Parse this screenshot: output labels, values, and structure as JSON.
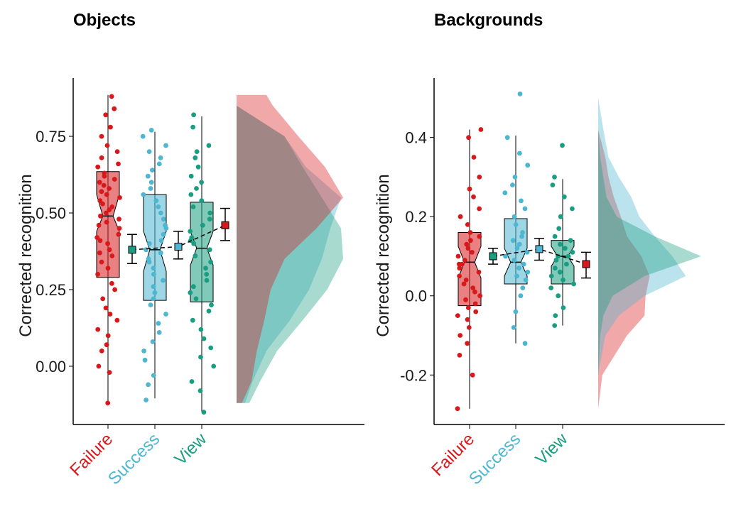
{
  "colors": {
    "Failure": "#d7191c",
    "Success": "#4db6d0",
    "View": "#1a9e82"
  },
  "chart_data": [
    {
      "type": "raincloud",
      "title": "Objects",
      "ylabel": "Corrected recognition",
      "ylim": [
        -0.19,
        0.94
      ],
      "yticks": [
        0.0,
        0.25,
        0.5,
        0.75
      ],
      "ytick_labels": [
        "0.00",
        "0.25",
        "0.50",
        "0.75"
      ],
      "categories": [
        "Failure",
        "Success",
        "View"
      ],
      "boxes": [
        {
          "name": "Failure",
          "whisker_low": -0.12,
          "q1": 0.29,
          "median": 0.49,
          "q3": 0.635,
          "whisker_high": 0.885,
          "notch_low": 0.44,
          "notch_high": 0.56
        },
        {
          "name": "Success",
          "whisker_low": -0.105,
          "q1": 0.215,
          "median": 0.38,
          "q3": 0.56,
          "whisker_high": 0.765,
          "notch_low": 0.31,
          "notch_high": 0.44
        },
        {
          "name": "View",
          "whisker_low": -0.15,
          "q1": 0.21,
          "median": 0.385,
          "q3": 0.535,
          "whisker_high": 0.815,
          "notch_low": 0.33,
          "notch_high": 0.44
        }
      ],
      "means": [
        {
          "name": "Success",
          "mean": 0.38,
          "ci": [
            0.335,
            0.43
          ],
          "color_key": "View"
        },
        {
          "name": "View",
          "mean": 0.39,
          "ci": [
            0.35,
            0.44
          ],
          "color_key": "Success"
        },
        {
          "name": "Failure",
          "mean": 0.46,
          "ci": [
            0.41,
            0.515
          ],
          "color_key": "Failure"
        }
      ],
      "density_y": [
        -0.12,
        -0.05,
        0.05,
        0.15,
        0.25,
        0.35,
        0.45,
        0.55,
        0.65,
        0.75,
        0.85,
        0.885
      ],
      "densities": [
        {
          "name": "Failure",
          "values": [
            0.05,
            0.14,
            0.19,
            0.26,
            0.32,
            0.45,
            0.75,
            1.0,
            0.83,
            0.58,
            0.34,
            0.28
          ]
        },
        {
          "name": "Success",
          "values": [
            0.08,
            0.15,
            0.28,
            0.5,
            0.68,
            0.8,
            0.88,
            0.98,
            0.65,
            0.45,
            0.0,
            0.0
          ]
        },
        {
          "name": "View",
          "values": [
            0.12,
            0.22,
            0.38,
            0.62,
            0.85,
            1.0,
            0.98,
            0.8,
            0.62,
            0.45,
            0.0,
            0.0
          ]
        }
      ],
      "points": {
        "Failure": [
          -0.12,
          -0.02,
          0.0,
          0.05,
          0.07,
          0.1,
          0.12,
          0.15,
          0.17,
          0.19,
          0.22,
          0.25,
          0.27,
          0.3,
          0.32,
          0.34,
          0.36,
          0.37,
          0.38,
          0.4,
          0.41,
          0.42,
          0.43,
          0.45,
          0.46,
          0.47,
          0.48,
          0.49,
          0.5,
          0.51,
          0.52,
          0.53,
          0.54,
          0.55,
          0.56,
          0.57,
          0.58,
          0.59,
          0.6,
          0.61,
          0.62,
          0.63,
          0.65,
          0.66,
          0.68,
          0.7,
          0.72,
          0.75,
          0.78,
          0.82,
          0.84,
          0.88
        ],
        "Success": [
          -0.11,
          -0.06,
          -0.03,
          0.02,
          0.05,
          0.08,
          0.11,
          0.14,
          0.17,
          0.2,
          0.22,
          0.24,
          0.26,
          0.28,
          0.3,
          0.32,
          0.34,
          0.35,
          0.37,
          0.38,
          0.4,
          0.41,
          0.43,
          0.45,
          0.46,
          0.48,
          0.5,
          0.52,
          0.54,
          0.56,
          0.58,
          0.6,
          0.62,
          0.64,
          0.66,
          0.68,
          0.7,
          0.72,
          0.75,
          0.77
        ],
        "View": [
          -0.15,
          -0.08,
          -0.05,
          0.0,
          0.03,
          0.06,
          0.09,
          0.12,
          0.15,
          0.18,
          0.2,
          0.22,
          0.24,
          0.26,
          0.28,
          0.3,
          0.32,
          0.34,
          0.36,
          0.38,
          0.4,
          0.41,
          0.42,
          0.44,
          0.46,
          0.48,
          0.5,
          0.52,
          0.54,
          0.56,
          0.58,
          0.6,
          0.62,
          0.65,
          0.68,
          0.7,
          0.72,
          0.78,
          0.82
        ]
      }
    },
    {
      "type": "raincloud",
      "title": "Backgrounds",
      "ylabel": "Corrected recognition",
      "ylim": [
        -0.325,
        0.55
      ],
      "yticks": [
        -0.2,
        0.0,
        0.2,
        0.4
      ],
      "ytick_labels": [
        "-0.2",
        "0.0",
        "0.2",
        "0.4"
      ],
      "categories": [
        "Failure",
        "Success",
        "View"
      ],
      "boxes": [
        {
          "name": "Failure",
          "whisker_low": -0.285,
          "q1": -0.025,
          "median": 0.085,
          "q3": 0.16,
          "whisker_high": 0.42,
          "notch_low": 0.045,
          "notch_high": 0.125
        },
        {
          "name": "Success",
          "whisker_low": -0.12,
          "q1": 0.03,
          "median": 0.085,
          "q3": 0.195,
          "whisker_high": 0.405,
          "notch_low": 0.05,
          "notch_high": 0.12
        },
        {
          "name": "View",
          "whisker_low": -0.075,
          "q1": 0.03,
          "median": 0.1,
          "q3": 0.14,
          "whisker_high": 0.295,
          "notch_low": 0.075,
          "notch_high": 0.125
        }
      ],
      "means": [
        {
          "name": "Success",
          "mean": 0.1,
          "ci": [
            0.08,
            0.12
          ],
          "color_key": "View"
        },
        {
          "name": "View",
          "mean": 0.118,
          "ci": [
            0.09,
            0.145
          ],
          "color_key": "Success"
        },
        {
          "name": "Failure",
          "mean": 0.08,
          "ci": [
            0.045,
            0.11
          ],
          "color_key": "Failure"
        }
      ],
      "density_y": [
        -0.285,
        -0.2,
        -0.1,
        -0.05,
        0.0,
        0.05,
        0.1,
        0.15,
        0.2,
        0.25,
        0.3,
        0.35,
        0.42,
        0.5
      ],
      "densities": [
        {
          "name": "Failure",
          "values": [
            0.0,
            0.04,
            0.28,
            0.45,
            0.46,
            0.5,
            0.42,
            0.28,
            0.22,
            0.15,
            0.1,
            0.07,
            0.0,
            0.0
          ]
        },
        {
          "name": "Success",
          "values": [
            0.0,
            0.0,
            0.07,
            0.2,
            0.45,
            0.85,
            0.72,
            0.55,
            0.4,
            0.32,
            0.2,
            0.1,
            0.05,
            0.0
          ]
        },
        {
          "name": "View",
          "values": [
            0.0,
            0.0,
            0.02,
            0.05,
            0.14,
            0.45,
            1.0,
            0.55,
            0.18,
            0.08,
            0.05,
            0.02,
            0.0,
            0.0
          ]
        }
      ],
      "points": {
        "Failure": [
          -0.285,
          -0.2,
          -0.15,
          -0.12,
          -0.1,
          -0.08,
          -0.06,
          -0.05,
          -0.04,
          -0.03,
          -0.02,
          -0.01,
          0.0,
          0.01,
          0.02,
          0.03,
          0.04,
          0.05,
          0.06,
          0.07,
          0.08,
          0.08,
          0.09,
          0.1,
          0.11,
          0.12,
          0.13,
          0.14,
          0.15,
          0.16,
          0.18,
          0.2,
          0.22,
          0.25,
          0.27,
          0.3,
          0.35,
          0.4,
          0.42
        ],
        "Success": [
          -0.12,
          -0.08,
          -0.04,
          0.0,
          0.02,
          0.04,
          0.05,
          0.06,
          0.07,
          0.08,
          0.09,
          0.1,
          0.11,
          0.12,
          0.13,
          0.14,
          0.15,
          0.16,
          0.18,
          0.2,
          0.22,
          0.24,
          0.26,
          0.28,
          0.3,
          0.33,
          0.36,
          0.4,
          0.51
        ],
        "View": [
          -0.075,
          -0.05,
          -0.03,
          0.0,
          0.02,
          0.03,
          0.04,
          0.05,
          0.06,
          0.07,
          0.08,
          0.09,
          0.1,
          0.1,
          0.11,
          0.12,
          0.13,
          0.14,
          0.15,
          0.17,
          0.2,
          0.22,
          0.25,
          0.28,
          0.3,
          0.38
        ]
      }
    }
  ]
}
